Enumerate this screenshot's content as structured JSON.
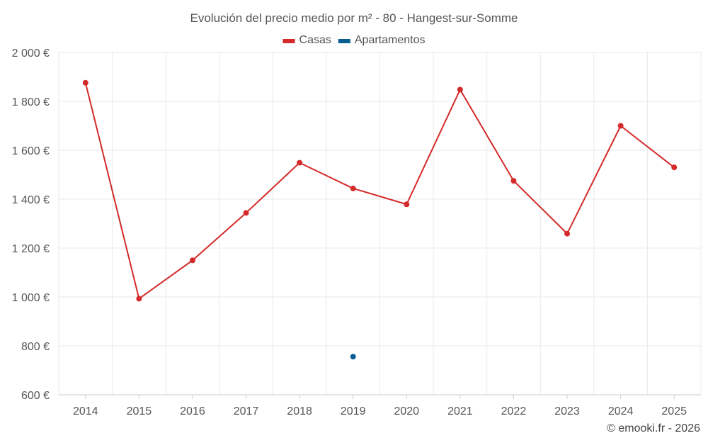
{
  "chart_data": {
    "type": "line",
    "title": "Evolución del precio medio por m² - 80 - Hangest-sur-Somme",
    "xlabel": "",
    "ylabel": "",
    "categories": [
      "2014",
      "2015",
      "2016",
      "2017",
      "2018",
      "2019",
      "2020",
      "2021",
      "2022",
      "2023",
      "2024",
      "2025"
    ],
    "series": [
      {
        "name": "Casas",
        "color": "#d42a2a",
        "values": [
          1876,
          993,
          1150,
          1344,
          1549,
          1444,
          1379,
          1848,
          1475,
          1259,
          1700,
          1530
        ]
      },
      {
        "name": "Apartamentos",
        "color": "#0b5e93",
        "values": [
          null,
          null,
          null,
          null,
          null,
          756,
          null,
          null,
          null,
          null,
          null,
          null
        ]
      }
    ],
    "ylim": [
      600,
      2000
    ],
    "yticks": [
      {
        "value": 600,
        "label": "600 €"
      },
      {
        "value": 800,
        "label": "800 €"
      },
      {
        "value": 1000,
        "label": "1 000 €"
      },
      {
        "value": 1200,
        "label": "1 200 €"
      },
      {
        "value": 1400,
        "label": "1 400 €"
      },
      {
        "value": 1600,
        "label": "1 600 €"
      },
      {
        "value": 1800,
        "label": "1 800 €"
      },
      {
        "value": 2000,
        "label": "2 000 €"
      }
    ],
    "grid": true,
    "legend_position": "top-center"
  },
  "credit": "© emooki.fr - 2026"
}
